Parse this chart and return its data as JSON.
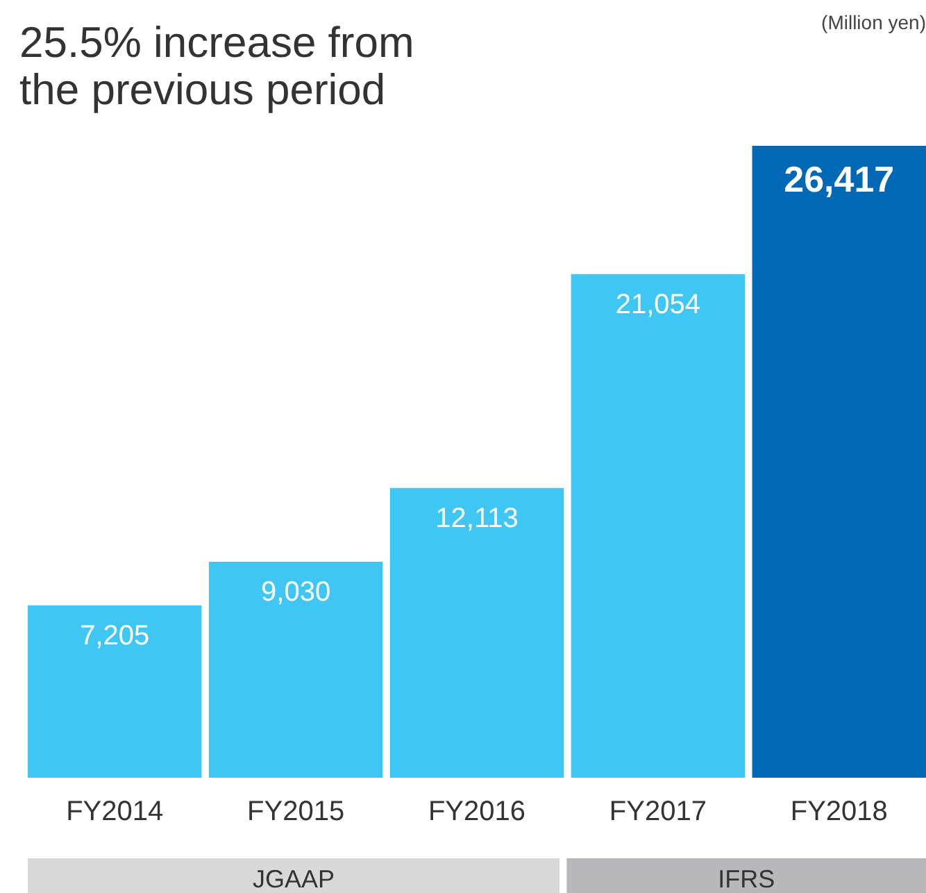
{
  "chart_data": {
    "type": "bar",
    "title": "25.5% increase from the previous period",
    "categories": [
      "FY2014",
      "FY2015",
      "FY2016",
      "FY2017",
      "FY2018"
    ],
    "values": [
      7205,
      9030,
      12113,
      21054,
      26417
    ],
    "value_labels": [
      "7,205",
      "9,030",
      "12,113",
      "21,054",
      "26,417"
    ],
    "colors": [
      "#40c6f2",
      "#40c6f2",
      "#40c6f2",
      "#40c6f2",
      "#0068b4"
    ],
    "grid": false,
    "annotations": [
      "(Million yen)",
      "JGAAP",
      "IFRS"
    ]
  }
}
